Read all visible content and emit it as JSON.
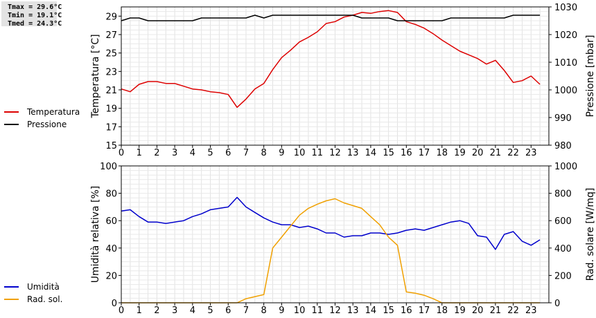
{
  "stats": {
    "tmax": "Tmax = 29.6°C",
    "tmin": "Tmin = 19.1°C",
    "tmed": "Tmed = 24.3°C"
  },
  "chart_data": [
    {
      "type": "line",
      "x_label": "",
      "y_label_left": "Temperatura [°C]",
      "y_label_right": "Pressione [mbar]",
      "xlim": [
        0,
        24
      ],
      "ylim_left": [
        15,
        30
      ],
      "ylim_right": [
        980,
        1030
      ],
      "x_ticks": [
        "0",
        "1",
        "2",
        "3",
        "4",
        "5",
        "6",
        "7",
        "8",
        "9",
        "10",
        "11",
        "12",
        "13",
        "14",
        "15",
        "16",
        "17",
        "18",
        "19",
        "20",
        "21",
        "22",
        "23"
      ],
      "y_ticks_left": [
        "15",
        "17",
        "19",
        "21",
        "23",
        "25",
        "27",
        "29"
      ],
      "y_ticks_right": [
        "980",
        "990",
        "1000",
        "1010",
        "1020",
        "1030"
      ],
      "grid": true,
      "legend_position": "left",
      "series": [
        {
          "name": "Temperatura",
          "axis": "left",
          "color": "#dd0000",
          "x": [
            0,
            0.5,
            1,
            1.5,
            2,
            2.5,
            3,
            3.5,
            4,
            4.5,
            5,
            5.5,
            6,
            6.5,
            7,
            7.5,
            8,
            8.5,
            9,
            9.5,
            10,
            10.5,
            11,
            11.5,
            12,
            12.5,
            13,
            13.5,
            14,
            14.5,
            15,
            15.5,
            16,
            16.5,
            17,
            17.5,
            18,
            18.5,
            19,
            19.5,
            20,
            20.5,
            21,
            21.5,
            22,
            22.5,
            23,
            23.5
          ],
          "values": [
            21.1,
            20.8,
            21.6,
            21.9,
            21.9,
            21.7,
            21.7,
            21.4,
            21.1,
            21.0,
            20.8,
            20.7,
            20.5,
            19.1,
            20.0,
            21.1,
            21.7,
            23.2,
            24.5,
            25.3,
            26.2,
            26.7,
            27.3,
            28.2,
            28.4,
            28.9,
            29.1,
            29.4,
            29.3,
            29.5,
            29.6,
            29.4,
            28.4,
            28.1,
            27.7,
            27.1,
            26.4,
            25.8,
            25.2,
            24.8,
            24.4,
            23.8,
            24.2,
            23.1,
            21.8,
            22.0,
            22.5,
            21.6
          ]
        },
        {
          "name": "Pressione",
          "axis": "right",
          "color": "#000000",
          "x": [
            0,
            0.5,
            1,
            1.5,
            2,
            2.5,
            3,
            3.5,
            4,
            4.5,
            5,
            5.5,
            6,
            6.5,
            7,
            7.5,
            8,
            8.5,
            9,
            9.5,
            10,
            10.5,
            11,
            11.5,
            12,
            12.5,
            13,
            13.5,
            14,
            14.5,
            15,
            15.5,
            16,
            16.5,
            17,
            17.5,
            18,
            18.5,
            19,
            19.5,
            20,
            20.5,
            21,
            21.5,
            22,
            22.5,
            23,
            23.5
          ],
          "values": [
            1025,
            1026,
            1026,
            1025,
            1025,
            1025,
            1025,
            1025,
            1025,
            1026,
            1026,
            1026,
            1026,
            1026,
            1026,
            1027,
            1026,
            1027,
            1027,
            1027,
            1027,
            1027,
            1027,
            1027,
            1027,
            1027,
            1027,
            1026,
            1026,
            1026,
            1026,
            1025,
            1025,
            1025,
            1025,
            1025,
            1025,
            1026,
            1026,
            1026,
            1026,
            1026,
            1026,
            1026,
            1027,
            1027,
            1027,
            1027
          ]
        }
      ]
    },
    {
      "type": "line",
      "x_label": "",
      "y_label_left": "Umidità relativa [%]",
      "y_label_right": "Rad. solare [W/mq]",
      "xlim": [
        0,
        24
      ],
      "ylim_left": [
        0,
        100
      ],
      "ylim_right": [
        0,
        1000
      ],
      "x_ticks": [
        "0",
        "1",
        "2",
        "3",
        "4",
        "5",
        "6",
        "7",
        "8",
        "9",
        "10",
        "11",
        "12",
        "13",
        "14",
        "15",
        "16",
        "17",
        "18",
        "19",
        "20",
        "21",
        "22",
        "23"
      ],
      "y_ticks_left": [
        "0",
        "20",
        "40",
        "60",
        "80",
        "100"
      ],
      "y_ticks_right": [
        "0",
        "200",
        "400",
        "600",
        "800",
        "1000"
      ],
      "grid": true,
      "legend_position": "left",
      "series": [
        {
          "name": "Umidità",
          "axis": "left",
          "color": "#0000cc",
          "x": [
            0,
            0.5,
            1,
            1.5,
            2,
            2.5,
            3,
            3.5,
            4,
            4.5,
            5,
            5.5,
            6,
            6.5,
            7,
            7.5,
            8,
            8.5,
            9,
            9.5,
            10,
            10.5,
            11,
            11.5,
            12,
            12.5,
            13,
            13.5,
            14,
            14.5,
            15,
            15.5,
            16,
            16.5,
            17,
            17.5,
            18,
            18.5,
            19,
            19.5,
            20,
            20.5,
            21,
            21.5,
            22,
            22.5,
            23,
            23.5
          ],
          "values": [
            67,
            68,
            63,
            59,
            59,
            58,
            59,
            60,
            63,
            65,
            68,
            69,
            70,
            77,
            70,
            66,
            62,
            59,
            57,
            57,
            55,
            56,
            54,
            51,
            51,
            48,
            49,
            49,
            51,
            51,
            50,
            51,
            53,
            54,
            53,
            55,
            57,
            59,
            60,
            58,
            49,
            48,
            39,
            50,
            52,
            45,
            42,
            46
          ]
        },
        {
          "name": "Rad. sol.",
          "axis": "right",
          "color": "#f0a000",
          "x": [
            0,
            0.5,
            1,
            1.5,
            2,
            2.5,
            3,
            3.5,
            4,
            4.5,
            5,
            5.5,
            6,
            6.5,
            7,
            7.5,
            8,
            8.5,
            9,
            9.5,
            10,
            10.5,
            11,
            11.5,
            12,
            12.5,
            13,
            13.5,
            14,
            14.5,
            15,
            15.5,
            16,
            16.5,
            17,
            17.5,
            18,
            18.5,
            19,
            19.5,
            20,
            20.5,
            21,
            21.5,
            22,
            22.5,
            23,
            23.5
          ],
          "values": [
            0,
            0,
            0,
            0,
            0,
            0,
            0,
            0,
            0,
            0,
            0,
            0,
            0,
            0,
            30,
            45,
            60,
            400,
            480,
            560,
            640,
            690,
            720,
            745,
            760,
            730,
            710,
            690,
            630,
            570,
            480,
            420,
            80,
            70,
            55,
            30,
            0,
            0,
            0,
            0,
            0,
            0,
            0,
            0,
            0,
            0,
            0,
            0
          ]
        }
      ]
    }
  ]
}
